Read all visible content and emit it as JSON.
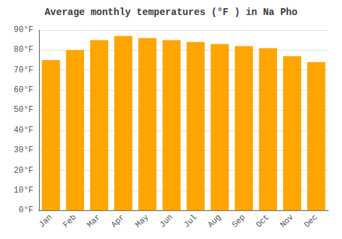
{
  "chart_data": {
    "type": "bar",
    "title": "Average monthly temperatures (°F ) in Na Pho",
    "categories": [
      "Jan",
      "Feb",
      "Mar",
      "Apr",
      "May",
      "Jun",
      "Jul",
      "Aug",
      "Sep",
      "Oct",
      "Nov",
      "Dec"
    ],
    "values": [
      75,
      80,
      85,
      87,
      86,
      85,
      84,
      83,
      82,
      81,
      77,
      74
    ],
    "color": "#FFA500",
    "ylim": [
      0,
      90
    ],
    "yticks": [
      {
        "value": 0,
        "label": "0°F"
      },
      {
        "value": 10,
        "label": "10°F"
      },
      {
        "value": 20,
        "label": "20°F"
      },
      {
        "value": 30,
        "label": "30°F"
      },
      {
        "value": 40,
        "label": "40°F"
      },
      {
        "value": 50,
        "label": "50°F"
      },
      {
        "value": 60,
        "label": "60°F"
      },
      {
        "value": 70,
        "label": "70°F"
      },
      {
        "value": 80,
        "label": "80°F"
      },
      {
        "value": 90,
        "label": "90°F"
      }
    ],
    "grid": true
  }
}
